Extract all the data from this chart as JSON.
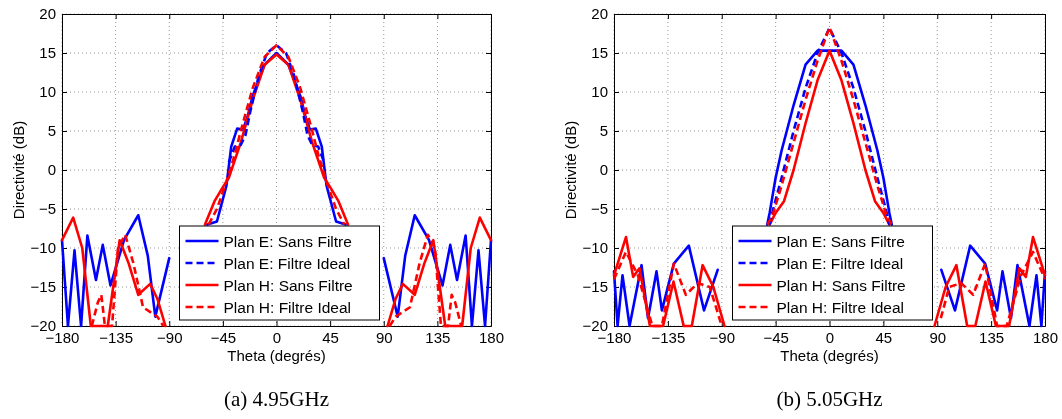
{
  "chart_data": [
    {
      "type": "line",
      "title": "(a) 4.95GHz",
      "xlabel": "Theta (degrés)",
      "ylabel": "Directivité (dB)",
      "xlim": [
        -180,
        180
      ],
      "ylim": [
        -20,
        20
      ],
      "xticks": [
        -180,
        -135,
        -90,
        -45,
        0,
        45,
        90,
        135,
        180
      ],
      "yticks": [
        -20,
        -15,
        -10,
        -5,
        0,
        5,
        10,
        15,
        20
      ],
      "grid": true,
      "legend": "bottom",
      "series": [
        {
          "name": "Plan E: Sans Filtre",
          "color": "#0000ff",
          "line_style": "solid",
          "x": [
            -180,
            -175,
            -169.5,
            -164,
            -158.7,
            -151.5,
            -145.8,
            -139.3,
            -128,
            -116,
            -108,
            -101.7,
            -90,
            -85,
            -58,
            -50,
            -42,
            -38,
            -33,
            -28,
            -24,
            -20,
            -10,
            0,
            10,
            20,
            24,
            28,
            33,
            38,
            42,
            50,
            58,
            85,
            90,
            101.7,
            108,
            116,
            128,
            139.3,
            145.8,
            151.5,
            158.7,
            164,
            169.5,
            175,
            180
          ],
          "values": [
            -9,
            -20,
            -10.3,
            -20,
            -8.4,
            -14.1,
            -9.6,
            -14.8,
            -9,
            -5.8,
            -11,
            -18.8,
            -11.3,
            null,
            -7,
            -6.6,
            -2,
            3,
            5.3,
            5.2,
            7,
            9.5,
            13.5,
            15,
            13.5,
            9.5,
            7,
            5.2,
            5.3,
            3,
            -2,
            -6.6,
            -7,
            null,
            -11.3,
            -18.8,
            -11,
            -5.8,
            -9,
            -14.8,
            -9.6,
            -14.1,
            -8.4,
            -20,
            -10.3,
            -20,
            -9
          ]
        },
        {
          "name": "Plan E: Filtre Ideal",
          "color": "#0000ff",
          "line_style": "dashed",
          "x": [
            -40,
            -35,
            -30,
            -26,
            -22,
            -15,
            -8,
            0,
            8,
            15,
            22,
            26,
            30,
            35,
            40
          ],
          "values": [
            1,
            3,
            3.2,
            4.5,
            7.5,
            12,
            15,
            16,
            15,
            12,
            7.5,
            4.5,
            3.2,
            3,
            1
          ]
        },
        {
          "name": "Plan H: Sans Filtre",
          "color": "#ff0000",
          "line_style": "solid",
          "x": [
            -180,
            -170.6,
            -163,
            -155.8,
            -141.6,
            -131.6,
            -124,
            -116,
            -106,
            -100,
            -93.2,
            -85,
            -60,
            -52,
            -45,
            -40,
            -30,
            -20,
            -10,
            0,
            10,
            20,
            30,
            40,
            45,
            52,
            60,
            85,
            93.2,
            100,
            106,
            116,
            124,
            131.6,
            141.6,
            155.8,
            163,
            170.6,
            180
          ],
          "values": [
            -9,
            -6.1,
            -10,
            -20,
            -20,
            -9,
            -12,
            -16,
            -14.6,
            -16.5,
            -20,
            null,
            -7,
            -4,
            -2.2,
            -1,
            3.5,
            9,
            13.5,
            14.8,
            13.5,
            9,
            3.5,
            -1,
            -2.2,
            -4,
            -7,
            null,
            -20,
            -16.5,
            -14.6,
            -16,
            -12,
            -9,
            -20,
            -20,
            -10,
            -6.1,
            -9
          ]
        },
        {
          "name": "Plan H: Filtre Ideal",
          "color": "#ff0000",
          "line_style": "dashed",
          "x": [
            -155,
            -150,
            -147,
            -144,
            -138,
            -133,
            -127,
            -120,
            -112,
            -100,
            -95,
            -85,
            -57,
            -50,
            -42,
            -35,
            -30,
            -20,
            -10,
            0,
            10,
            20,
            30,
            35,
            42,
            50,
            57,
            85,
            95,
            100,
            112,
            120,
            127,
            133,
            138,
            144,
            147,
            150,
            155
          ],
          "values": [
            -20,
            -17,
            -16,
            -20,
            -20,
            -10,
            -8.3,
            -12,
            -17.6,
            -18.8,
            -20,
            null,
            -7,
            -5,
            -1.5,
            2,
            5,
            10.5,
            14.5,
            16,
            14.5,
            10.5,
            5,
            2,
            -1.5,
            -5,
            -7,
            null,
            -20,
            -18.8,
            -17.6,
            -12,
            -8.3,
            -10,
            -20,
            -20,
            -16,
            -17,
            -20
          ]
        }
      ]
    },
    {
      "type": "line",
      "title": "(b) 5.05GHz",
      "xlabel": "Theta (degrés)",
      "ylabel": "Directivité (dB)",
      "xlim": [
        -180,
        180
      ],
      "ylim": [
        -20,
        20
      ],
      "xticks": [
        -180,
        -135,
        -90,
        -45,
        0,
        45,
        90,
        135,
        180
      ],
      "yticks": [
        -20,
        -15,
        -10,
        -5,
        0,
        5,
        10,
        15,
        20
      ],
      "grid": true,
      "legend": "bottom",
      "series": [
        {
          "name": "Plan E: Sans Filtre",
          "color": "#0000ff",
          "line_style": "solid",
          "x": [
            -180,
            -177,
            -172.9,
            -167,
            -157,
            -151.6,
            -144.5,
            -140,
            -130,
            -117.5,
            -104.8,
            -93.4,
            -85,
            -52,
            -50,
            -45,
            -40,
            -30,
            -20,
            -10,
            0,
            10,
            20,
            30,
            40,
            45,
            50,
            52,
            85,
            93.4,
            104.8,
            117.5,
            130,
            140,
            144.5,
            151.6,
            157,
            167,
            172.9,
            177,
            180
          ],
          "values": [
            -13,
            -20,
            -13.5,
            -20,
            -12.2,
            -19,
            -13,
            -18,
            -12,
            -9.7,
            -18,
            -12.8,
            null,
            -7,
            -5.5,
            -1,
            2.5,
            8.3,
            13.5,
            15.3,
            15.3,
            15.3,
            13.5,
            8.3,
            2.5,
            -1,
            -5.5,
            -7,
            null,
            -12.8,
            -18,
            -9.7,
            -12,
            -18,
            -13,
            -19,
            -12.2,
            -20,
            -13.5,
            -20,
            -13
          ]
        },
        {
          "name": "Plan E: Filtre Ideal",
          "color": "#0000ff",
          "line_style": "dashed",
          "x": [
            -50,
            -47,
            -40,
            -30,
            -20,
            -10,
            0,
            10,
            20,
            30,
            40,
            47,
            50
          ],
          "values": [
            -7,
            -5,
            -1,
            5,
            10.5,
            15,
            18.2,
            15,
            10.5,
            5,
            -1,
            -5,
            -7
          ]
        },
        {
          "name": "Plan H: Sans Filtre",
          "color": "#ff0000",
          "line_style": "solid",
          "x": [
            -180,
            -170,
            -164,
            -158.7,
            -150,
            -139,
            -130.3,
            -121.8,
            -115,
            -106,
            -97,
            -87.7,
            -85,
            -50,
            -45,
            -38,
            -30,
            -20,
            -10,
            0,
            10,
            20,
            30,
            38,
            45,
            50,
            85,
            87.7,
            97,
            106,
            115,
            121.8,
            130.3,
            139,
            150,
            158.7,
            164,
            170,
            180
          ],
          "values": [
            -13.5,
            -8.6,
            -13.7,
            -12.6,
            -20,
            -20,
            -14.3,
            -20,
            -20,
            -12.2,
            -15,
            -20,
            null,
            -7,
            -5.5,
            -4,
            0,
            6,
            11.5,
            15.3,
            11.5,
            6,
            0,
            -4,
            -5.5,
            -7,
            null,
            -20,
            -15,
            -12.2,
            -20,
            -20,
            -14.3,
            -20,
            -20,
            -12.6,
            -13.7,
            -8.6,
            -13.5
          ]
        },
        {
          "name": "Plan H: Filtre Ideal",
          "color": "#ff0000",
          "line_style": "dashed",
          "x": [
            -180,
            -170,
            -160,
            -148,
            -140,
            -130,
            -120,
            -110,
            -100,
            -90,
            -85,
            -52,
            -48,
            -40,
            -30,
            -20,
            -10,
            0,
            10,
            20,
            30,
            40,
            48,
            52,
            85,
            93,
            100,
            110,
            120,
            130,
            140,
            148,
            160,
            170,
            180
          ],
          "values": [
            -14,
            -10.5,
            -13.5,
            -20,
            -20,
            -12,
            -16,
            -14.5,
            -15,
            -20,
            null,
            -7,
            -6,
            -2,
            3.5,
            9,
            14,
            18.3,
            14,
            9,
            3.5,
            -2,
            -6,
            -7,
            null,
            -19,
            -15,
            -14.5,
            -16,
            -12,
            -20,
            -20,
            -13.5,
            -10.5,
            -14
          ]
        }
      ]
    }
  ]
}
